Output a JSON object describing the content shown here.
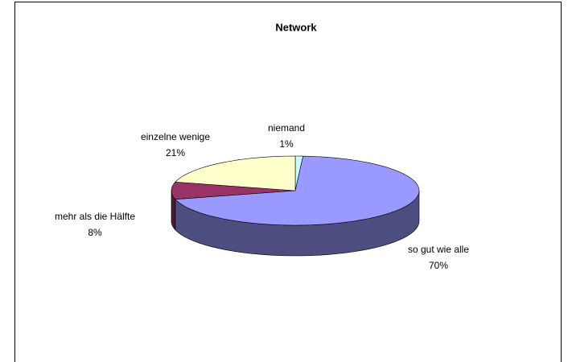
{
  "chart_data": {
    "type": "pie",
    "title": "Network",
    "categories": [
      "niemand",
      "so gut wie alle",
      "mehr als die Hälfte",
      "einzelne wenige"
    ],
    "values": [
      1,
      70,
      8,
      21
    ],
    "value_labels": [
      "1%",
      "70%",
      "8%",
      "21%"
    ],
    "colors": [
      "#ccffff",
      "#9999ff",
      "#993366",
      "#ffffcc"
    ]
  }
}
